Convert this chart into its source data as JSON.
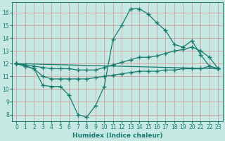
{
  "title": "",
  "xlabel": "Humidex (Indice chaleur)",
  "ylabel": "",
  "xlim": [
    -0.5,
    23.5
  ],
  "ylim": [
    7.5,
    16.8
  ],
  "xticks": [
    0,
    1,
    2,
    3,
    4,
    5,
    6,
    7,
    8,
    9,
    10,
    11,
    12,
    13,
    14,
    15,
    16,
    17,
    18,
    19,
    20,
    21,
    22,
    23
  ],
  "yticks": [
    8,
    9,
    10,
    11,
    12,
    13,
    14,
    15,
    16
  ],
  "background_color": "#c5e8e2",
  "grid_color": "#d4a0a0",
  "line_color": "#1a7a6e",
  "lines": [
    {
      "x": [
        0,
        1,
        2,
        3,
        4,
        5,
        6,
        7,
        8,
        9,
        10,
        11,
        12,
        13,
        14,
        15,
        16,
        17,
        18,
        19,
        20,
        21,
        22,
        23
      ],
      "y": [
        12,
        11.8,
        11.6,
        10.3,
        10.2,
        10.2,
        9.5,
        8.0,
        7.8,
        8.7,
        10.2,
        13.9,
        15.0,
        16.3,
        16.3,
        15.9,
        15.2,
        14.6,
        13.5,
        13.3,
        13.8,
        12.7,
        11.8,
        11.6
      ]
    },
    {
      "x": [
        0,
        1,
        2,
        3,
        4,
        5,
        6,
        7,
        8,
        9,
        10,
        11,
        12,
        13,
        14,
        15,
        16,
        17,
        18,
        19,
        20,
        21,
        22,
        23
      ],
      "y": [
        12,
        11.9,
        11.8,
        11.7,
        11.6,
        11.6,
        11.6,
        11.5,
        11.5,
        11.5,
        11.7,
        11.9,
        12.1,
        12.3,
        12.5,
        12.5,
        12.6,
        12.8,
        13.0,
        13.1,
        13.3,
        13.0,
        12.5,
        11.6
      ]
    },
    {
      "x": [
        0,
        23
      ],
      "y": [
        12,
        11.6
      ]
    },
    {
      "x": [
        0,
        1,
        2,
        3,
        4,
        5,
        6,
        7,
        8,
        9,
        10,
        11,
        12,
        13,
        14,
        15,
        16,
        17,
        18,
        19,
        20,
        21,
        22,
        23
      ],
      "y": [
        12,
        11.8,
        11.6,
        11.0,
        10.8,
        10.8,
        10.8,
        10.8,
        10.8,
        10.9,
        11.0,
        11.1,
        11.2,
        11.3,
        11.4,
        11.4,
        11.4,
        11.5,
        11.5,
        11.6,
        11.6,
        11.6,
        11.8,
        11.6
      ]
    }
  ],
  "marker": "+",
  "markersize": 4,
  "linewidth": 0.9
}
